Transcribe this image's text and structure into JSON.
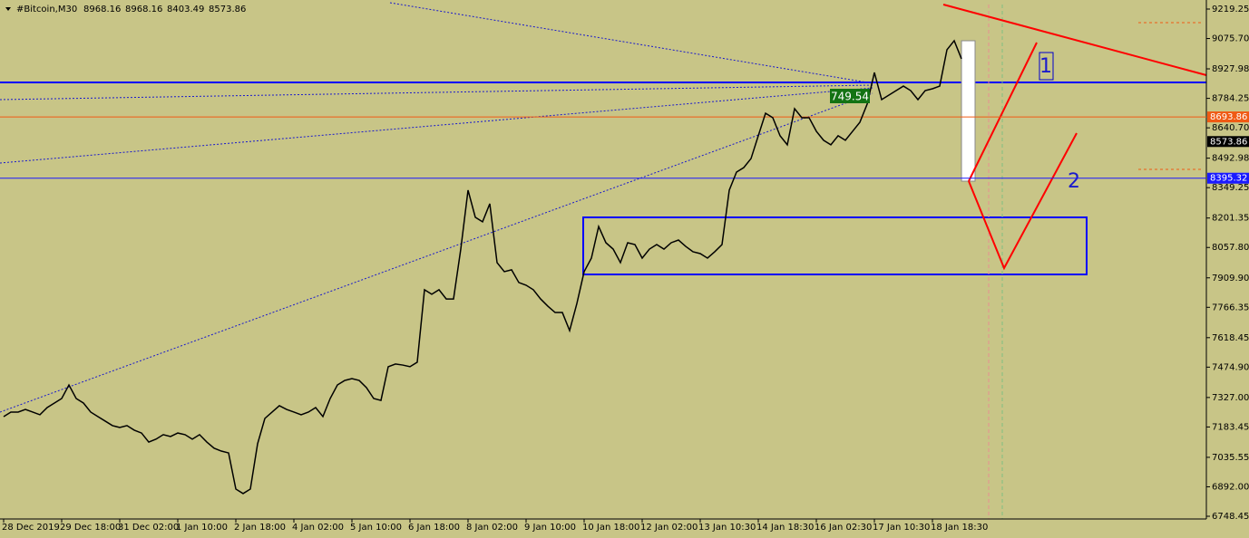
{
  "chart_data": {
    "type": "line",
    "title": "#Bitcoin,M30",
    "ohlc": [
      8968.16,
      8968.16,
      8403.49,
      8573.86
    ],
    "color": "#000000",
    "categories": [
      "28 Dec 2019",
      null,
      null,
      null,
      null,
      null,
      null,
      null,
      "29 Dec 18:00",
      null,
      null,
      null,
      null,
      null,
      null,
      null,
      "31 Dec 02:00",
      null,
      null,
      null,
      null,
      null,
      null,
      null,
      "1 Jan 10:00",
      null,
      null,
      null,
      null,
      null,
      null,
      null,
      "2 Jan 18:00",
      null,
      null,
      null,
      null,
      null,
      null,
      null,
      "4 Jan 02:00",
      null,
      null,
      null,
      null,
      null,
      null,
      null,
      "5 Jan 10:00",
      null,
      null,
      null,
      null,
      null,
      null,
      null,
      "6 Jan 18:00",
      null,
      null,
      null,
      null,
      null,
      null,
      null,
      "8 Jan 02:00",
      null,
      null,
      null,
      null,
      null,
      null,
      null,
      "9 Jan 10:00",
      null,
      null,
      null,
      null,
      null,
      null,
      null,
      "10 Jan 18:00",
      null,
      null,
      null,
      null,
      null,
      null,
      null,
      "12 Jan 02:00",
      null,
      null,
      null,
      null,
      null,
      null,
      null,
      "13 Jan 10:30",
      null,
      null,
      null,
      null,
      null,
      null,
      null,
      "14 Jan 18:30",
      null,
      null,
      null,
      null,
      null,
      null,
      null,
      "16 Jan 02:30",
      null,
      null,
      null,
      null,
      null,
      null,
      null,
      "17 Jan 10:30",
      null,
      null,
      null,
      null,
      null,
      null,
      null,
      "18 Jan 18:30",
      null,
      null,
      null,
      null
    ],
    "values": [
      7234,
      7256,
      7256,
      7269,
      7256,
      7243,
      7278,
      7300,
      7322,
      7388,
      7322,
      7300,
      7256,
      7234,
      7212,
      7190,
      7181,
      7190,
      7168,
      7154,
      7110,
      7124,
      7146,
      7137,
      7154,
      7146,
      7124,
      7146,
      7110,
      7080,
      7066,
      7057,
      6881,
      6859,
      6881,
      7102,
      7225,
      7256,
      7287,
      7269,
      7256,
      7243,
      7256,
      7278,
      7234,
      7322,
      7388,
      7410,
      7419,
      7410,
      7375,
      7322,
      7313,
      7477,
      7490,
      7485,
      7477,
      7499,
      7852,
      7830,
      7852,
      7807,
      7807,
      8050,
      8337,
      8205,
      8183,
      8271,
      7984,
      7940,
      7949,
      7887,
      7874,
      7852,
      7807,
      7772,
      7741,
      7741,
      7653,
      7785,
      7940,
      8006,
      8160,
      8081,
      8050,
      7984,
      8081,
      8072,
      8006,
      8050,
      8072,
      8050,
      8081,
      8094,
      8063,
      8037,
      8028,
      8006,
      8037,
      8072,
      8337,
      8425,
      8447,
      8491,
      8602,
      8712,
      8690,
      8602,
      8558,
      8734,
      8690,
      8690,
      8624,
      8580,
      8558,
      8602,
      8580,
      8624,
      8668,
      8756,
      8910,
      8778,
      8800,
      8822,
      8844,
      8822,
      8778,
      8822,
      8831,
      8844,
      9021,
      9065,
      8977
    ],
    "ylim": [
      6735.2,
      9263.4
    ],
    "yticks": [
      9219.25,
      {
        "value": 9075.7,
        "label": "9075.70"
      },
      8927.98,
      8784.25,
      {
        "value": 8640.7,
        "label": "8640.70"
      },
      8492.98,
      8349.25,
      8201.35,
      {
        "value": 8057.8,
        "label": "8057.80"
      },
      {
        "value": 7909.9,
        "label": "7909.90"
      },
      7766.35,
      7618.45,
      {
        "value": 7474.9,
        "label": "7474.90"
      },
      {
        "value": 7327,
        "label": "7327.00"
      },
      7183.45,
      7035.55,
      {
        "value": 6892,
        "label": "6892.00"
      },
      6748.45
    ],
    "price_levels": [
      {
        "value": 8693.86,
        "color": "#f05a14",
        "line": true
      },
      {
        "value": 8573.86,
        "color": "#000000",
        "line": false
      },
      {
        "value": 8395.32,
        "color": "#1a1aff",
        "line": true
      }
    ],
    "annotations": [
      "749.54",
      "1",
      "2"
    ]
  }
}
